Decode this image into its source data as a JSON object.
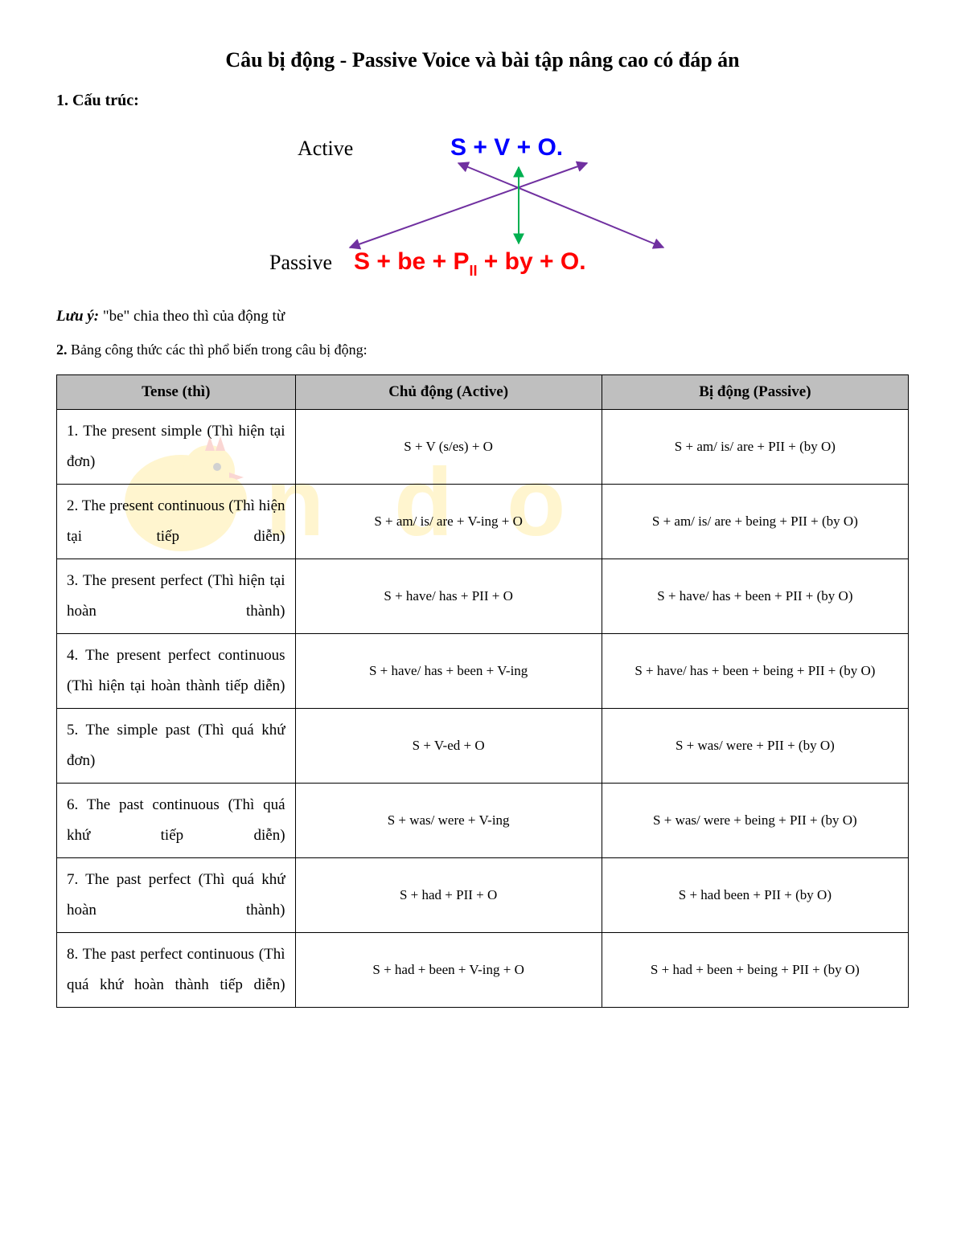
{
  "title": "Câu bị động - Passive Voice và bài tập nâng cao có đáp án",
  "section1_heading": "1. Cấu trúc:",
  "diagram": {
    "active_label": "Active",
    "passive_label": "Passive",
    "active_formula_parts": {
      "s": "S",
      "plus1": " + ",
      "v": "V",
      "plus2": "  + ",
      "o": "O",
      "dot": "."
    },
    "passive_formula_parts": {
      "s": "S",
      "p1": " + ",
      "be": "be",
      "p2": " + ",
      "pii": "P",
      "sub": "II",
      "p3": " + ",
      "by": "by",
      "p4": " + ",
      "o": "O",
      "dot": "."
    },
    "arrow_color": "#7030a0",
    "center_arrow_color": "#00b050"
  },
  "note_label": "Lưu ý:",
  "note_text": " \"be\" chia theo thì của động từ",
  "section2_prefix": "2.",
  "section2_text": " Bảng công thức các thì phổ biến trong câu bị động:",
  "table": {
    "headers": [
      "Tense (thì)",
      "Chủ động (Active)",
      "Bị động (Passive)"
    ],
    "rows": [
      {
        "tense": "1. The present simple (Thì hiện tại đơn)",
        "active": "S + V (s/es) + O",
        "passive": "S + am/ is/ are + PII + (by O)"
      },
      {
        "tense": "2. The present continuous (Thì hiện tại tiếp diễn)",
        "active": "S + am/ is/ are + V-ing + O",
        "passive": "S + am/ is/ are + being + PII + (by O)"
      },
      {
        "tense": "3. The present perfect (Thì hiện tại hoàn thành)",
        "active": "S + have/ has + PII + O",
        "passive": "S + have/ has + been + PII + (by O)"
      },
      {
        "tense": "4. The present perfect continuous (Thì hiện tại hoàn thành tiếp diễn)",
        "active": "S + have/ has + been + V-ing",
        "passive": "S + have/ has + been + being + PII + (by O)"
      },
      {
        "tense": "5. The simple past (Thì quá khứ đơn)",
        "active": "S + V-ed + O",
        "passive": "S + was/ were + PII + (by O)"
      },
      {
        "tense": "6. The past continuous (Thì quá khứ tiếp diễn)",
        "active": "S + was/  were + V-ing",
        "passive": "S + was/ were + being + PII + (by O)"
      },
      {
        "tense": "7. The past perfect (Thì quá khứ hoàn thành)",
        "active": "S + had + PII + O",
        "passive": "S + had been + PII + (by O)"
      },
      {
        "tense": "8. The past perfect continuous (Thì quá khứ hoàn thành tiếp diễn)",
        "active": "S + had + been + V-ing + O",
        "passive": "S + had + been + being + PII + (by O)"
      }
    ]
  },
  "colors": {
    "header_bg": "#bfbfbf",
    "active_blue": "#0000ff",
    "passive_red": "#ff0000",
    "watermark_yellow": "#ffd428",
    "watermark_red": "#e94b3c"
  }
}
